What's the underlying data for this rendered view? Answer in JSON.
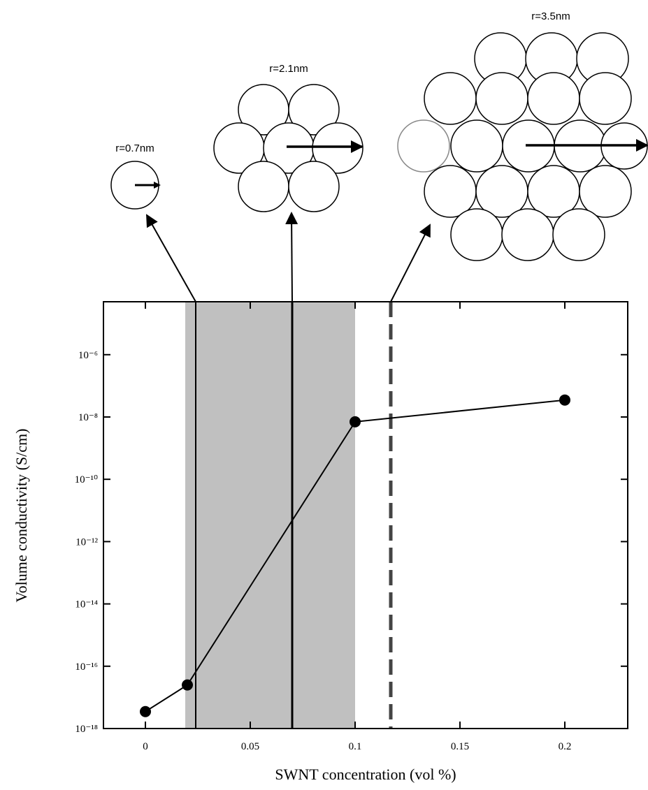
{
  "chart_data": {
    "type": "line",
    "x_label": "SWNT concentration (vol %)",
    "y_label": "Volume conductivity (S/cm)",
    "log_y": true,
    "xlim": [
      -0.02,
      0.23
    ],
    "xticks": [
      0,
      0.05,
      0.1,
      0.15,
      0.2
    ],
    "ylim": [
      1e-18,
      5e-05
    ],
    "yticks": [
      {
        "value": 1e-18,
        "label": "10⁻¹⁸"
      },
      {
        "value": 1e-16,
        "label": "10⁻¹⁶"
      },
      {
        "value": 1e-14,
        "label": "10⁻¹⁴"
      },
      {
        "value": 1e-12,
        "label": "10⁻¹²"
      },
      {
        "value": 1e-10,
        "label": "10⁻¹⁰"
      },
      {
        "value": 1e-08,
        "label": "10⁻⁸"
      },
      {
        "value": 1e-06,
        "label": "10⁻⁶"
      }
    ],
    "x": [
      0,
      0.02,
      0.1,
      0.2
    ],
    "series": [
      {
        "color": "#000000",
        "values": [
          3.5e-18,
          2.5e-17,
          7e-09,
          3.5e-08
        ]
      }
    ],
    "shaded_region": [
      0.019,
      0.1
    ],
    "shade_color": "#c0c0c0",
    "vlines": [
      {
        "x": 0.024,
        "style": "solid"
      },
      {
        "x": 0.07,
        "style": "solid"
      },
      {
        "x": 0.117,
        "style": "dashed"
      }
    ],
    "annotations": [
      "r=0.7nm",
      "r=2.1nm",
      "r=3.5nm"
    ]
  }
}
